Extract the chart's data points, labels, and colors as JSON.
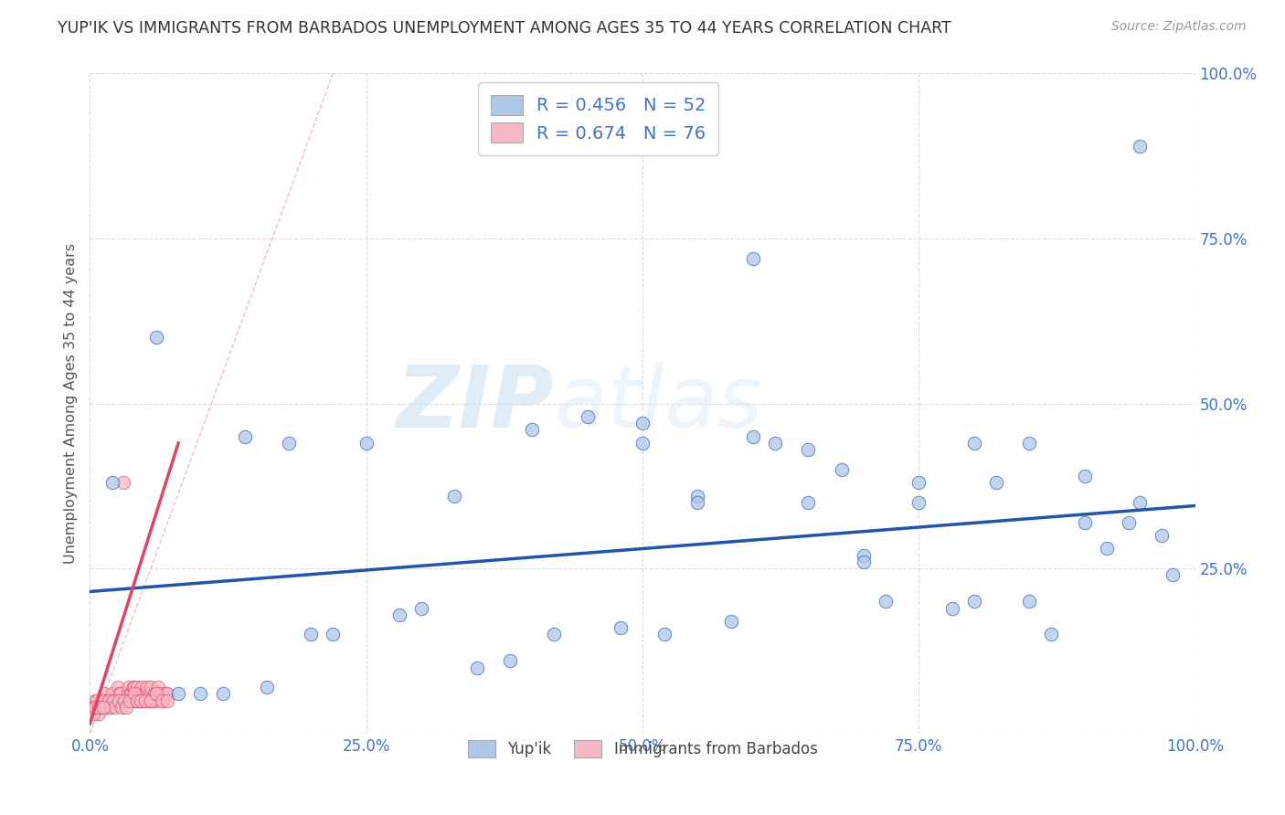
{
  "title": "YUP'IK VS IMMIGRANTS FROM BARBADOS UNEMPLOYMENT AMONG AGES 35 TO 44 YEARS CORRELATION CHART",
  "source": "Source: ZipAtlas.com",
  "ylabel": "Unemployment Among Ages 35 to 44 years",
  "xlim": [
    0,
    1
  ],
  "ylim": [
    0,
    1
  ],
  "xticks": [
    0.0,
    0.25,
    0.5,
    0.75,
    1.0
  ],
  "yticks": [
    0.0,
    0.25,
    0.5,
    0.75,
    1.0
  ],
  "xticklabels": [
    "0.0%",
    "25.0%",
    "50.0%",
    "75.0%",
    "100.0%"
  ],
  "yticklabels": [
    "",
    "25.0%",
    "50.0%",
    "75.0%",
    "100.0%"
  ],
  "title_color": "#333333",
  "title_fontsize": 12.5,
  "axis_label_color": "#555555",
  "tick_color": "#4472c4",
  "background_color": "#ffffff",
  "grid_color": "#cccccc",
  "watermark_zip": "ZIP",
  "watermark_atlas": "atlas",
  "legend_r1": "R = 0.456",
  "legend_n1": "N = 52",
  "legend_r2": "R = 0.674",
  "legend_n2": "N = 76",
  "series1_color": "#aec6e8",
  "series2_color": "#f5b8c4",
  "trendline1_color": "#2255aa",
  "trendline2_color": "#dd4466",
  "legend_color": "#4472c4",
  "yupik_x": [
    0.02,
    0.06,
    0.08,
    0.1,
    0.12,
    0.14,
    0.16,
    0.18,
    0.2,
    0.22,
    0.25,
    0.28,
    0.3,
    0.33,
    0.35,
    0.38,
    0.4,
    0.42,
    0.45,
    0.48,
    0.5,
    0.52,
    0.55,
    0.58,
    0.6,
    0.62,
    0.65,
    0.68,
    0.7,
    0.72,
    0.75,
    0.78,
    0.8,
    0.82,
    0.85,
    0.87,
    0.9,
    0.92,
    0.94,
    0.95,
    0.97,
    0.98,
    0.5,
    0.6,
    0.7,
    0.8,
    0.9,
    0.55,
    0.65,
    0.75,
    0.85,
    0.95
  ],
  "yupik_y": [
    0.38,
    0.6,
    0.06,
    0.06,
    0.06,
    0.45,
    0.07,
    0.44,
    0.15,
    0.15,
    0.44,
    0.18,
    0.19,
    0.36,
    0.1,
    0.11,
    0.46,
    0.15,
    0.48,
    0.16,
    0.47,
    0.15,
    0.36,
    0.17,
    0.72,
    0.44,
    0.35,
    0.4,
    0.27,
    0.2,
    0.38,
    0.19,
    0.2,
    0.38,
    0.2,
    0.15,
    0.39,
    0.28,
    0.32,
    0.89,
    0.3,
    0.24,
    0.44,
    0.45,
    0.26,
    0.44,
    0.32,
    0.35,
    0.43,
    0.35,
    0.44,
    0.35
  ],
  "barbados_x": [
    0.005,
    0.007,
    0.008,
    0.01,
    0.012,
    0.013,
    0.015,
    0.016,
    0.018,
    0.02,
    0.022,
    0.024,
    0.025,
    0.027,
    0.028,
    0.03,
    0.032,
    0.034,
    0.035,
    0.037,
    0.038,
    0.039,
    0.04,
    0.041,
    0.042,
    0.043,
    0.044,
    0.045,
    0.046,
    0.047,
    0.048,
    0.049,
    0.05,
    0.051,
    0.052,
    0.053,
    0.054,
    0.055,
    0.056,
    0.057,
    0.058,
    0.059,
    0.06,
    0.062,
    0.064,
    0.066,
    0.068,
    0.07,
    0.002,
    0.003,
    0.004,
    0.006,
    0.009,
    0.011,
    0.014,
    0.017,
    0.019,
    0.021,
    0.023,
    0.026,
    0.029,
    0.031,
    0.033,
    0.036,
    0.04,
    0.043,
    0.046,
    0.05,
    0.055,
    0.06,
    0.065,
    0.07,
    0.003,
    0.005,
    0.008,
    0.012
  ],
  "barbados_y": [
    0.05,
    0.04,
    0.03,
    0.05,
    0.04,
    0.06,
    0.05,
    0.05,
    0.04,
    0.06,
    0.05,
    0.05,
    0.07,
    0.06,
    0.06,
    0.38,
    0.05,
    0.06,
    0.07,
    0.06,
    0.06,
    0.07,
    0.07,
    0.05,
    0.06,
    0.07,
    0.06,
    0.05,
    0.06,
    0.07,
    0.05,
    0.06,
    0.05,
    0.06,
    0.07,
    0.05,
    0.06,
    0.07,
    0.05,
    0.05,
    0.06,
    0.05,
    0.06,
    0.07,
    0.06,
    0.05,
    0.06,
    0.06,
    0.04,
    0.04,
    0.04,
    0.05,
    0.04,
    0.05,
    0.04,
    0.05,
    0.04,
    0.05,
    0.04,
    0.05,
    0.04,
    0.05,
    0.04,
    0.05,
    0.06,
    0.05,
    0.05,
    0.05,
    0.05,
    0.06,
    0.05,
    0.05,
    0.03,
    0.04,
    0.04,
    0.04
  ],
  "trendline1_x": [
    0.0,
    1.0
  ],
  "trendline1_y": [
    0.215,
    0.345
  ],
  "trendline2_x": [
    0.0,
    0.08
  ],
  "trendline2_y": [
    0.015,
    0.44
  ],
  "refline_x": [
    0.0,
    0.22
  ],
  "refline_y": [
    0.0,
    1.0
  ]
}
